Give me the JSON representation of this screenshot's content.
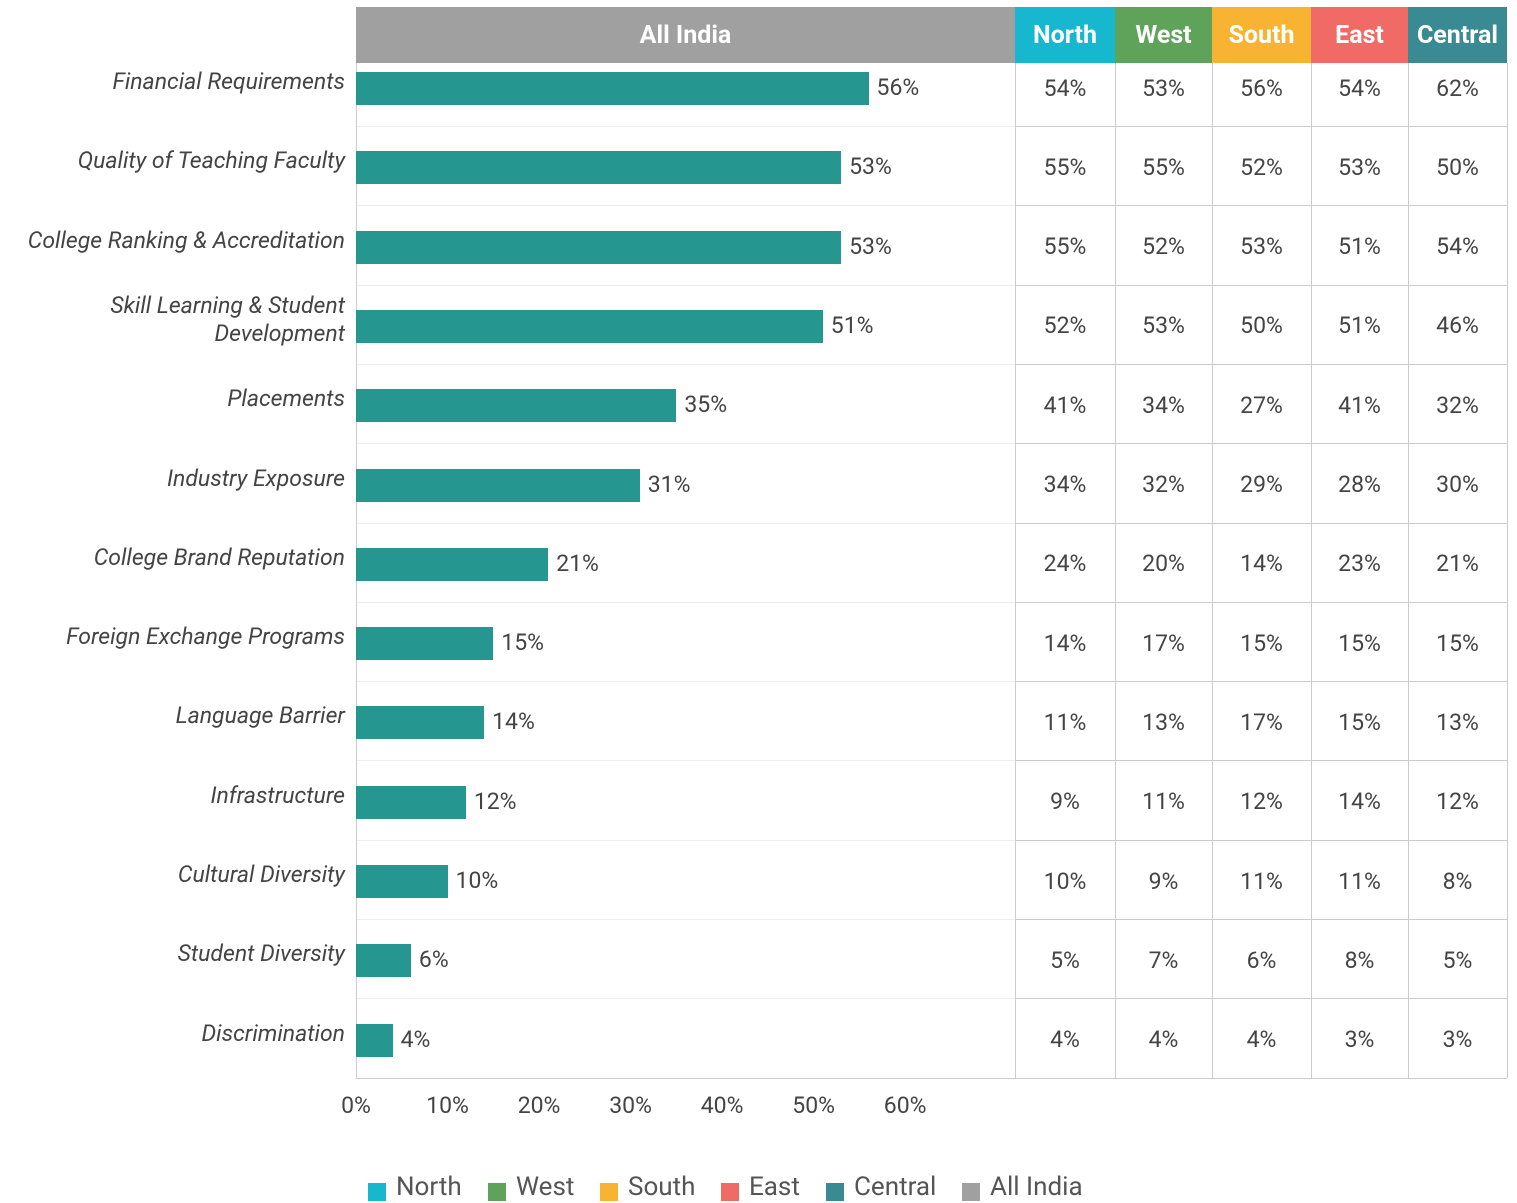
{
  "chart_data": {
    "type": "bar",
    "orientation": "horizontal",
    "categories": [
      "Financial Requirements",
      "Quality of Teaching Faculty",
      "College Ranking & Accreditation",
      "Skill Learning & Student Development",
      "Placements",
      "Industry Exposure",
      "College Brand Reputation",
      "Foreign Exchange Programs",
      "Language Barrier",
      "Infrastructure",
      "Cultural Diversity",
      "Student Diversity",
      "Discrimination"
    ],
    "series": [
      {
        "name": "All India",
        "color": "#a0a0a0",
        "bar_color": "#259690",
        "values": [
          56,
          53,
          53,
          51,
          35,
          31,
          21,
          15,
          14,
          12,
          10,
          6,
          4
        ],
        "value_labels": [
          "56%",
          "53%",
          "53%",
          "51%",
          "35%",
          "31%",
          "21%",
          "15%",
          "14%",
          "12%",
          "10%",
          "6%",
          "4%"
        ]
      },
      {
        "name": "North",
        "color": "#17b8cf",
        "values": [
          54,
          55,
          55,
          52,
          41,
          34,
          24,
          14,
          11,
          9,
          10,
          5,
          4
        ],
        "value_labels": [
          "54%",
          "55%",
          "55%",
          "52%",
          "41%",
          "34%",
          "24%",
          "14%",
          "11%",
          "9%",
          "10%",
          "5%",
          "4%"
        ]
      },
      {
        "name": "West",
        "color": "#5fa35b",
        "values": [
          53,
          55,
          52,
          53,
          34,
          32,
          20,
          17,
          13,
          11,
          9,
          7,
          4
        ],
        "value_labels": [
          "53%",
          "55%",
          "52%",
          "53%",
          "34%",
          "32%",
          "20%",
          "17%",
          "13%",
          "11%",
          "9%",
          "7%",
          "4%"
        ]
      },
      {
        "name": "South",
        "color": "#f8b332",
        "values": [
          56,
          52,
          53,
          50,
          27,
          29,
          14,
          15,
          17,
          12,
          11,
          6,
          4
        ],
        "value_labels": [
          "56%",
          "52%",
          "53%",
          "50%",
          "27%",
          "29%",
          "14%",
          "15%",
          "17%",
          "12%",
          "11%",
          "6%",
          "4%"
        ]
      },
      {
        "name": "East",
        "color": "#f06a66",
        "values": [
          54,
          53,
          51,
          51,
          41,
          28,
          23,
          15,
          15,
          14,
          11,
          8,
          3
        ],
        "value_labels": [
          "54%",
          "53%",
          "51%",
          "51%",
          "41%",
          "28%",
          "23%",
          "15%",
          "15%",
          "14%",
          "11%",
          "8%",
          "3%"
        ]
      },
      {
        "name": "Central",
        "color": "#3a8a94",
        "values": [
          62,
          50,
          54,
          46,
          32,
          30,
          21,
          15,
          13,
          12,
          8,
          5,
          3
        ],
        "value_labels": [
          "62%",
          "50%",
          "54%",
          "46%",
          "32%",
          "30%",
          "21%",
          "15%",
          "13%",
          "12%",
          "8%",
          "5%",
          "3%"
        ]
      }
    ],
    "legend_order": [
      1,
      2,
      3,
      4,
      5,
      0
    ],
    "xlim": [
      0,
      72
    ],
    "xticks": [
      {
        "value": 0,
        "label": "0%"
      },
      {
        "value": 10,
        "label": "10%"
      },
      {
        "value": 20,
        "label": "20%"
      },
      {
        "value": 30,
        "label": "30%"
      },
      {
        "value": 40,
        "label": "40%"
      },
      {
        "value": 50,
        "label": "50%"
      },
      {
        "value": 60,
        "label": "60%"
      }
    ]
  }
}
